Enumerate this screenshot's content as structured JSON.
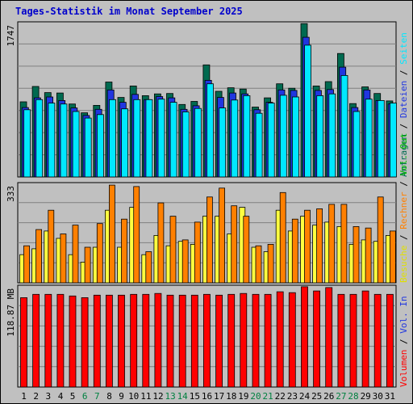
{
  "title": "Tages-Statistik im Monat September 2025",
  "colors": {
    "anfragen": "#006a50",
    "dateien": "#2036e0",
    "seiten": "#00e8ff",
    "besuche": "#ffff40",
    "rechner": "#ff8000",
    "volumen": "#ff0000",
    "weekend_day_label": "#008040",
    "weekday_label": "#000000",
    "grid": "#808080",
    "plot_bg": "#c0c0c0"
  },
  "chart_data": [
    {
      "type": "bar",
      "panel": "hits",
      "y_label": "1747",
      "ylim": [
        0,
        1747
      ],
      "categories": [
        "1",
        "2",
        "3",
        "4",
        "5",
        "6",
        "7",
        "8",
        "9",
        "10",
        "11",
        "12",
        "13",
        "14",
        "15",
        "16",
        "17",
        "18",
        "19",
        "20",
        "21",
        "22",
        "23",
        "24",
        "25",
        "26",
        "27",
        "28",
        "29",
        "30",
        "31"
      ],
      "right_labels": [
        {
          "text": "Anfragen",
          "color": "#006a50"
        },
        {
          "text": "Dateien",
          "color": "#2036e0"
        },
        {
          "text": "Seiten",
          "color": "#00e8ff"
        }
      ],
      "separators": [
        {
          "text": " / ",
          "color": "#000000"
        },
        {
          "text": " / ",
          "color": "#000000"
        }
      ],
      "series": [
        {
          "name": "Anfragen",
          "color": "#006a50",
          "values": [
            855,
            1030,
            960,
            955,
            830,
            730,
            815,
            1080,
            905,
            1035,
            925,
            945,
            950,
            825,
            860,
            1275,
            975,
            1015,
            1000,
            795,
            900,
            1060,
            1010,
            1745,
            1035,
            1085,
            1405,
            835,
            1025,
            950,
            865
          ]
        },
        {
          "name": "Dateien",
          "color": "#2036e0",
          "values": [
            790,
            900,
            910,
            870,
            785,
            700,
            770,
            990,
            850,
            940,
            880,
            915,
            900,
            770,
            810,
            1100,
            905,
            955,
            945,
            765,
            850,
            990,
            985,
            1590,
            985,
            995,
            1250,
            790,
            990,
            870,
            830
          ]
        },
        {
          "name": "Seiten",
          "color": "#00e8ff",
          "values": [
            765,
            880,
            840,
            830,
            745,
            670,
            710,
            880,
            775,
            880,
            880,
            885,
            850,
            740,
            780,
            1060,
            785,
            875,
            925,
            725,
            840,
            930,
            910,
            1500,
            925,
            945,
            1155,
            745,
            885,
            870,
            840
          ]
        }
      ]
    },
    {
      "type": "bar",
      "panel": "visits",
      "y_label": "333",
      "ylim": [
        0,
        333
      ],
      "categories": [
        "1",
        "2",
        "3",
        "4",
        "5",
        "6",
        "7",
        "8",
        "9",
        "10",
        "11",
        "12",
        "13",
        "14",
        "15",
        "16",
        "17",
        "18",
        "19",
        "20",
        "21",
        "22",
        "23",
        "24",
        "25",
        "26",
        "27",
        "28",
        "29",
        "30",
        "31"
      ],
      "right_labels": [
        {
          "text": "Besuche",
          "color": "#e0e000"
        },
        {
          "text": "Rechner",
          "color": "#ff8000"
        },
        {
          "text": "Vol. Out",
          "color": "#00c000"
        }
      ],
      "separators": [
        {
          "text": " / ",
          "color": "#000000"
        },
        {
          "text": " / ",
          "color": "#000000"
        }
      ],
      "series": [
        {
          "name": "Besuche",
          "color": "#ffff40",
          "values": [
            95,
            115,
            175,
            150,
            95,
            70,
            120,
            245,
            120,
            255,
            95,
            160,
            125,
            140,
            130,
            225,
            225,
            165,
            255,
            120,
            105,
            245,
            175,
            225,
            195,
            205,
            190,
            130,
            145,
            140,
            160
          ]
        },
        {
          "name": "Rechner",
          "color": "#ff8000",
          "values": [
            125,
            180,
            245,
            165,
            195,
            120,
            200,
            330,
            215,
            325,
            105,
            270,
            225,
            145,
            205,
            290,
            320,
            260,
            225,
            125,
            130,
            305,
            215,
            245,
            250,
            265,
            265,
            190,
            185,
            290,
            175
          ]
        }
      ]
    },
    {
      "type": "bar",
      "panel": "volume",
      "y_label": "118.87 MB",
      "ylim": [
        0,
        118.87
      ],
      "categories": [
        "1",
        "2",
        "3",
        "4",
        "5",
        "6",
        "7",
        "8",
        "9",
        "10",
        "11",
        "12",
        "13",
        "14",
        "15",
        "16",
        "17",
        "18",
        "19",
        "20",
        "21",
        "22",
        "23",
        "24",
        "25",
        "26",
        "27",
        "28",
        "29",
        "30",
        "31"
      ],
      "right_labels": [
        {
          "text": "Volumen",
          "color": "#ff0000"
        },
        {
          "text": "Vol. In",
          "color": "#2036e0"
        }
      ],
      "separators": [
        {
          "text": " / ",
          "color": "#000000"
        }
      ],
      "series": [
        {
          "name": "Volumen",
          "color": "#ff0000",
          "values": [
            106,
            110,
            110,
            110,
            108,
            106,
            109,
            109,
            109,
            110,
            110,
            111,
            109,
            109,
            109,
            110,
            109,
            110,
            111,
            110,
            110,
            113,
            112,
            119,
            114,
            118,
            110,
            110,
            114,
            110,
            110
          ]
        }
      ]
    }
  ],
  "weekend_days": [
    "6",
    "7",
    "13",
    "14",
    "20",
    "21",
    "27",
    "28"
  ]
}
